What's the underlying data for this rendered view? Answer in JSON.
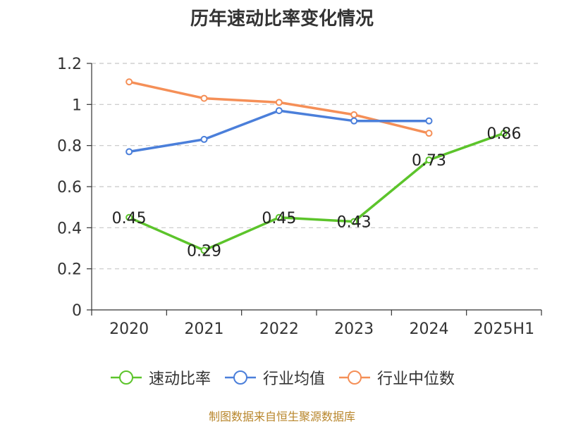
{
  "source": "制图数据来自恒生聚源数据库",
  "chart_data": {
    "type": "line",
    "title": "历年速动比率变化情况",
    "xlabel": "",
    "ylabel": "",
    "categories": [
      "2020",
      "2021",
      "2022",
      "2023",
      "2024",
      "2025H1"
    ],
    "ylim": [
      0,
      1.2
    ],
    "yticks": [
      "0",
      "0.2",
      "0.4",
      "0.6",
      "0.8",
      "1",
      "1.2"
    ],
    "grid": true,
    "legend_position": "bottom",
    "series": [
      {
        "name": "速动比率",
        "color": "#5cc42b",
        "values": [
          0.45,
          0.29,
          0.45,
          0.43,
          0.73,
          0.86
        ],
        "labels": [
          "0.45",
          "0.29",
          "0.45",
          "0.43",
          "0.73",
          "0.86"
        ]
      },
      {
        "name": "行业均值",
        "color": "#4b7fda",
        "values": [
          0.77,
          0.83,
          0.97,
          0.92,
          0.92,
          null
        ]
      },
      {
        "name": "行业中位数",
        "color": "#f58f57",
        "values": [
          1.11,
          1.03,
          1.01,
          0.95,
          0.86,
          null
        ]
      }
    ]
  }
}
